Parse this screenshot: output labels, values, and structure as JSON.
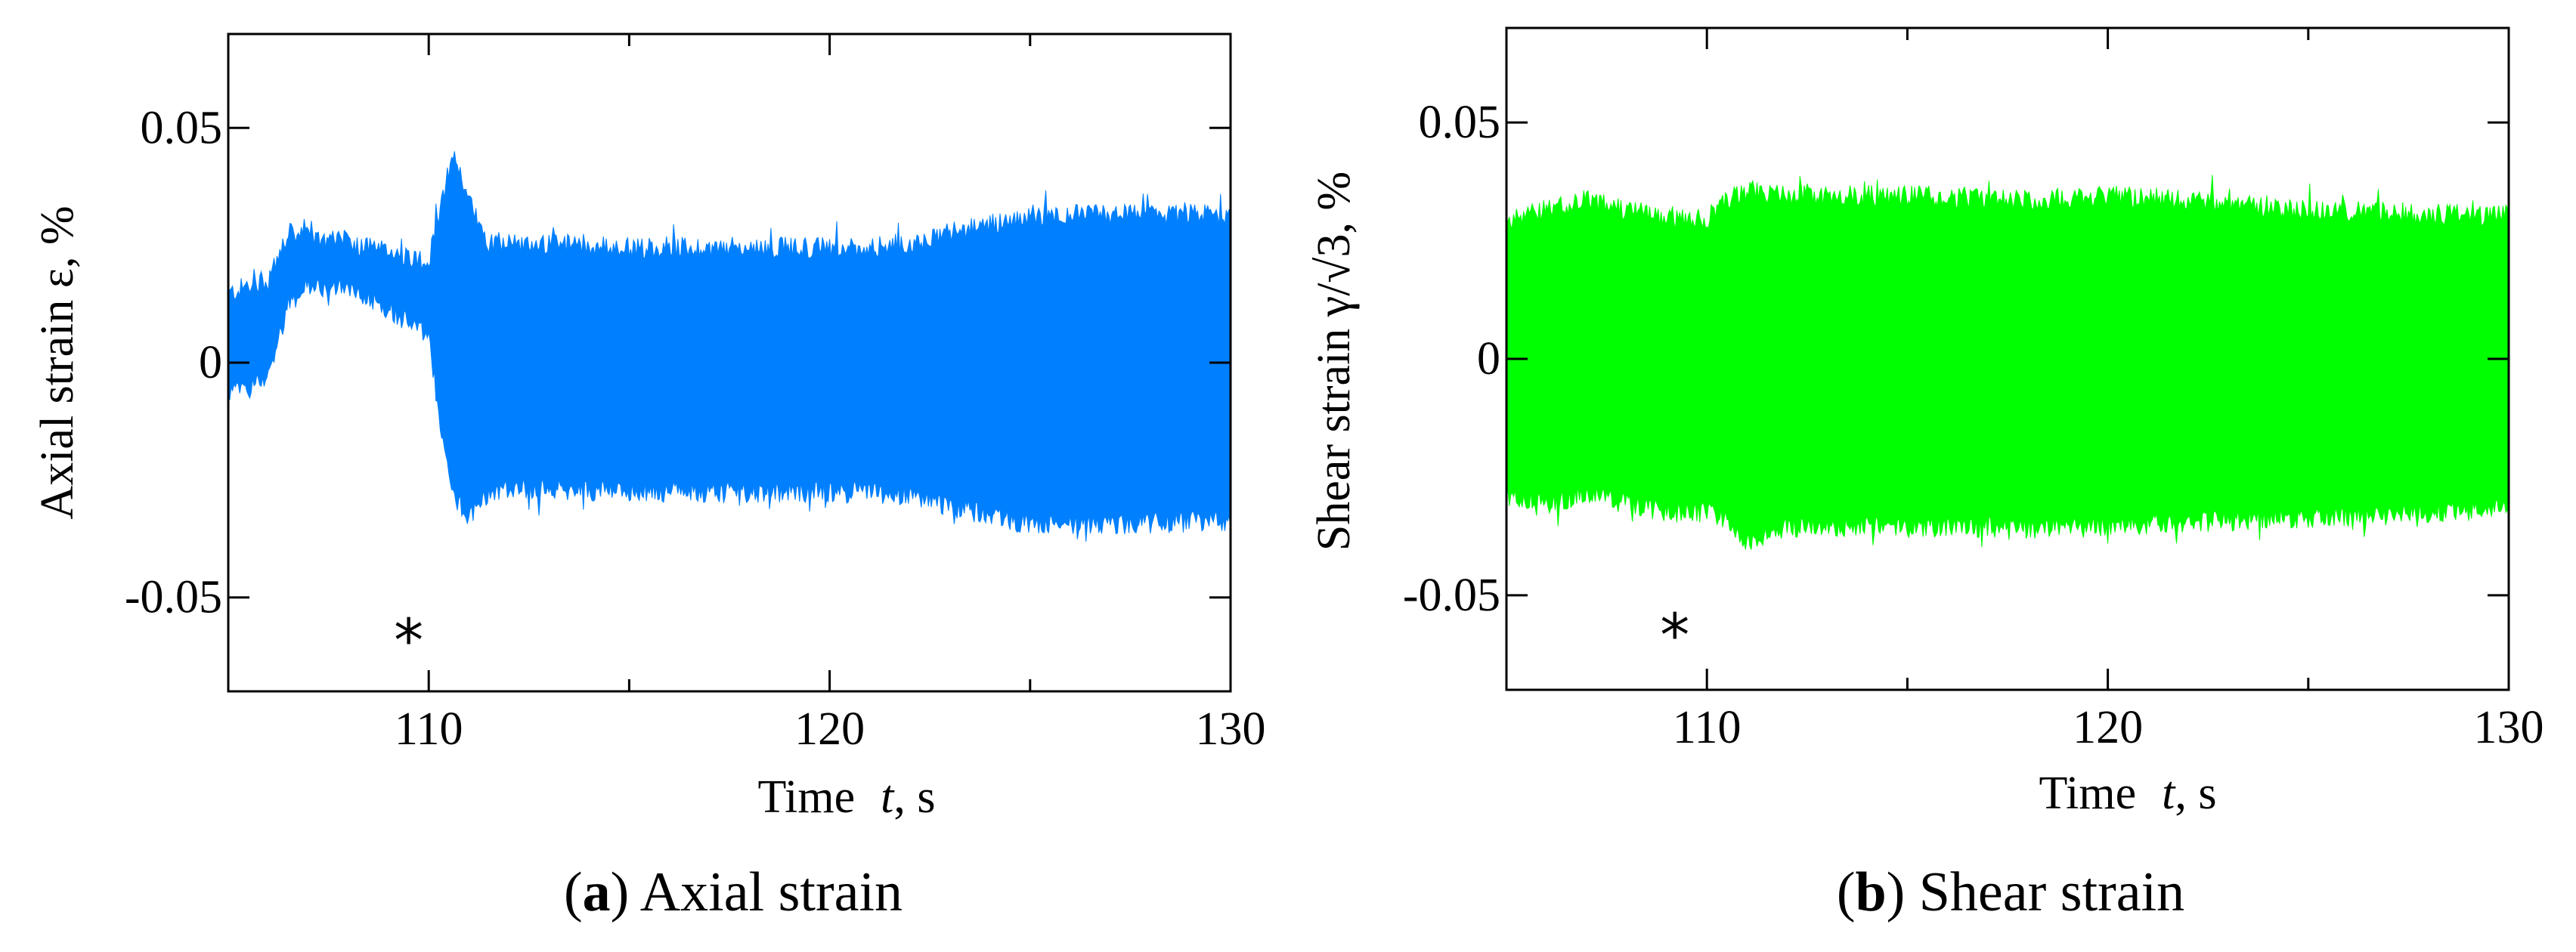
{
  "chart_data": [
    {
      "type": "area",
      "id": "a",
      "title": "",
      "caption_letter": "a",
      "caption_text": "Axial strain",
      "color": "#0080ff",
      "xlabel_prefix": "Time",
      "xlabel_var": "t",
      "xlabel_unit": ", s",
      "ylabel": "Axial strain ε, %",
      "xlim": [
        105,
        130
      ],
      "ylim": [
        -0.07,
        0.07
      ],
      "xticks_major": [
        110,
        120,
        130
      ],
      "xtick_labels": [
        "110",
        "120",
        "130"
      ],
      "yticks": [
        -0.05,
        0,
        0.05
      ],
      "ytick_labels": [
        "-0.05",
        "0",
        "0.05"
      ],
      "marker_text": "*",
      "marker_x": 109.5,
      "envelope": {
        "x": [
          105,
          105.5,
          106,
          106.5,
          107,
          108,
          109,
          110,
          110.3,
          110.6,
          111,
          111.5,
          112,
          115,
          118,
          121,
          122,
          123,
          124,
          125,
          127,
          130
        ],
        "upper": [
          0.015,
          0.017,
          0.018,
          0.028,
          0.027,
          0.026,
          0.024,
          0.022,
          0.033,
          0.046,
          0.035,
          0.026,
          0.026,
          0.025,
          0.025,
          0.025,
          0.026,
          0.028,
          0.03,
          0.032,
          0.032,
          0.032
        ],
        "lower": [
          -0.007,
          -0.006,
          -0.003,
          0.012,
          0.016,
          0.016,
          0.011,
          0.005,
          -0.015,
          -0.029,
          -0.033,
          -0.028,
          -0.027,
          -0.028,
          -0.028,
          -0.028,
          -0.029,
          -0.031,
          -0.033,
          -0.035,
          -0.035,
          -0.034
        ]
      }
    },
    {
      "type": "area",
      "id": "b",
      "title": "",
      "caption_letter": "b",
      "caption_text": "Shear strain",
      "color": "#00ff00",
      "xlabel_prefix": "Time",
      "xlabel_var": "t",
      "xlabel_unit": ", s",
      "ylabel": "Shear strain γ/√3, %",
      "xlim": [
        105,
        130
      ],
      "ylim": [
        -0.07,
        0.07
      ],
      "xticks_major": [
        110,
        120,
        130
      ],
      "xtick_labels": [
        "110",
        "120",
        "130"
      ],
      "yticks": [
        -0.05,
        0,
        0.05
      ],
      "ytick_labels": [
        "-0.05",
        "0",
        "0.05"
      ],
      "marker_text": "*",
      "marker_x": 109.2,
      "envelope": {
        "x": [
          105,
          106,
          107,
          108,
          109,
          110,
          110.5,
          111,
          112,
          115,
          118,
          120,
          122,
          125,
          128,
          130
        ],
        "upper": [
          0.03,
          0.032,
          0.034,
          0.032,
          0.03,
          0.03,
          0.034,
          0.036,
          0.035,
          0.035,
          0.034,
          0.035,
          0.034,
          0.032,
          0.031,
          0.031
        ],
        "lower": [
          -0.03,
          -0.031,
          -0.029,
          -0.031,
          -0.033,
          -0.033,
          -0.035,
          -0.039,
          -0.036,
          -0.036,
          -0.036,
          -0.036,
          -0.035,
          -0.034,
          -0.033,
          -0.032
        ]
      }
    }
  ]
}
